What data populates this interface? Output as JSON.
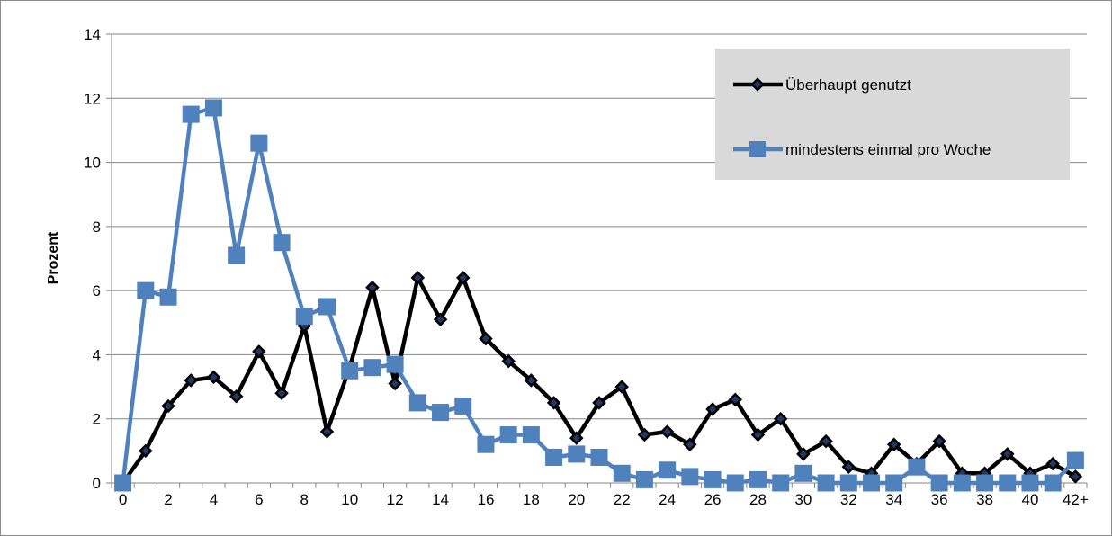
{
  "chart_data": {
    "type": "line",
    "title": "",
    "xlabel": "",
    "ylabel": "Prozent",
    "ylim": [
      0,
      14
    ],
    "yticks": [
      "0",
      "2",
      "4",
      "6",
      "8",
      "10",
      "12",
      "14"
    ],
    "x": [
      0,
      1,
      2,
      3,
      4,
      5,
      6,
      7,
      8,
      9,
      10,
      11,
      12,
      13,
      14,
      15,
      16,
      17,
      18,
      19,
      20,
      21,
      22,
      23,
      24,
      25,
      26,
      27,
      28,
      29,
      30,
      31,
      32,
      33,
      34,
      35,
      36,
      37,
      38,
      39,
      40,
      41,
      42
    ],
    "xticks": [
      "0",
      "2",
      "4",
      "6",
      "8",
      "10",
      "12",
      "14",
      "16",
      "18",
      "20",
      "22",
      "24",
      "26",
      "28",
      "30",
      "32",
      "34",
      "36",
      "38",
      "40",
      "42+"
    ],
    "grid": true,
    "legend_position": "top-right",
    "series": [
      {
        "name": "Überhaupt genutzt",
        "color": "#000000",
        "marker": "diamond",
        "values": [
          0,
          1.0,
          2.4,
          3.2,
          3.3,
          2.7,
          4.1,
          2.8,
          4.9,
          1.6,
          3.6,
          6.1,
          3.1,
          6.4,
          5.1,
          6.4,
          4.5,
          3.8,
          3.2,
          2.5,
          1.4,
          2.5,
          3.0,
          1.5,
          1.6,
          1.2,
          2.3,
          2.6,
          1.5,
          2.0,
          0.9,
          1.3,
          0.5,
          0.3,
          1.2,
          0.6,
          1.3,
          0.3,
          0.3,
          0.9,
          0.3,
          0.6,
          0.2
        ]
      },
      {
        "name": "mindestens einmal pro Woche",
        "color": "#4f81bd",
        "marker": "square",
        "values": [
          0,
          6.0,
          5.8,
          11.5,
          11.7,
          7.1,
          10.6,
          7.5,
          5.2,
          5.5,
          3.5,
          3.6,
          3.7,
          2.5,
          2.2,
          2.4,
          1.2,
          1.5,
          1.5,
          0.8,
          0.9,
          0.8,
          0.3,
          0.1,
          0.4,
          0.2,
          0.1,
          0.0,
          0.1,
          0.0,
          0.3,
          0.0,
          0.0,
          0.0,
          0.0,
          0.5,
          0.0,
          0.0,
          0.0,
          0.0,
          0.0,
          0.0,
          0.7
        ]
      }
    ]
  }
}
